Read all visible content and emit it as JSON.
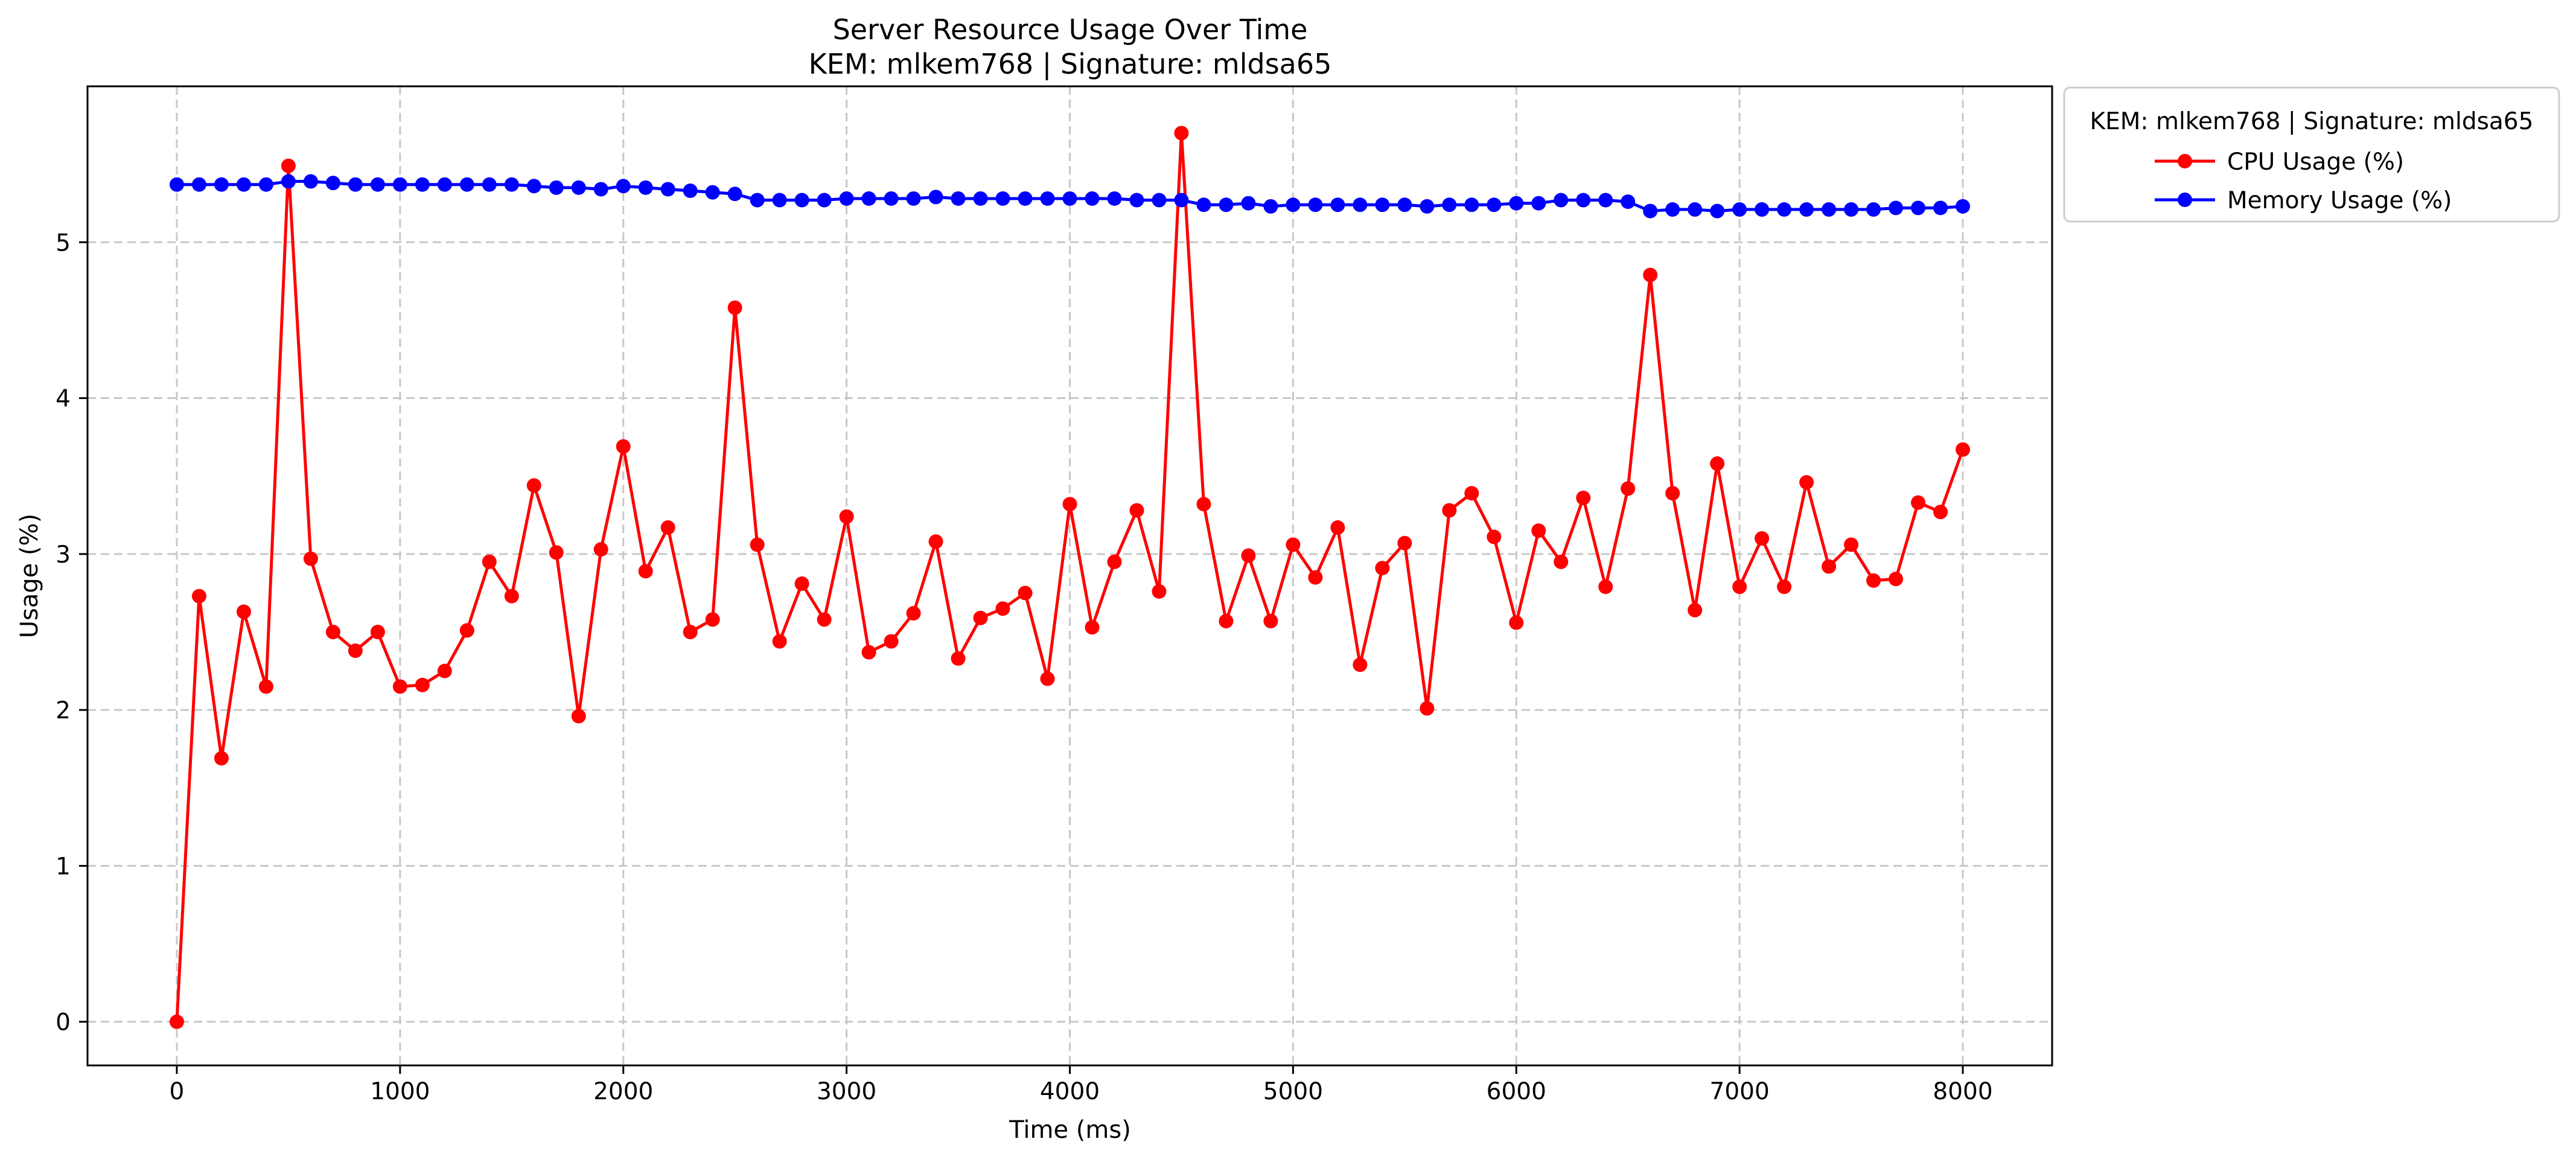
{
  "chart_data": {
    "type": "line",
    "title": "Server Resource Usage Over Time",
    "subtitle": "KEM: mlkem768 | Signature: mldsa65",
    "xlabel": "Time (ms)",
    "ylabel": "Usage (%)",
    "xlim": [
      -400,
      8400
    ],
    "ylim": [
      -0.28,
      6.0
    ],
    "xticks": [
      0,
      1000,
      2000,
      3000,
      4000,
      5000,
      6000,
      7000,
      8000
    ],
    "yticks": [
      0,
      1,
      2,
      3,
      4,
      5
    ],
    "grid": true,
    "legend": {
      "title": "KEM: mlkem768 | Signature: mldsa65",
      "placement": "outside-top-right"
    },
    "x": [
      0,
      100,
      200,
      300,
      400,
      500,
      600,
      700,
      800,
      900,
      1000,
      1100,
      1200,
      1300,
      1400,
      1500,
      1600,
      1700,
      1800,
      1900,
      2000,
      2100,
      2200,
      2300,
      2400,
      2500,
      2600,
      2700,
      2800,
      2900,
      3000,
      3100,
      3200,
      3300,
      3400,
      3500,
      3600,
      3700,
      3800,
      3900,
      4000,
      4100,
      4200,
      4300,
      4400,
      4500,
      4600,
      4700,
      4800,
      4900,
      5000,
      5100,
      5200,
      5300,
      5400,
      5500,
      5600,
      5700,
      5800,
      5900,
      6000,
      6100,
      6200,
      6300,
      6400,
      6500,
      6600,
      6700,
      6800,
      6900,
      7000,
      7100,
      7200,
      7300,
      7400,
      7500,
      7600,
      7700,
      7800,
      7900,
      8000
    ],
    "series": [
      {
        "name": "CPU Usage (%)",
        "color": "#ff0000",
        "values": [
          0.0,
          2.73,
          1.69,
          2.63,
          2.15,
          5.49,
          2.97,
          2.5,
          2.38,
          2.5,
          2.15,
          2.16,
          2.25,
          2.51,
          2.95,
          2.73,
          3.44,
          3.01,
          1.96,
          3.03,
          3.69,
          2.89,
          3.17,
          2.5,
          2.58,
          4.58,
          3.06,
          2.44,
          2.81,
          2.58,
          3.24,
          2.37,
          2.44,
          2.62,
          3.08,
          2.33,
          2.59,
          2.65,
          2.75,
          2.2,
          3.32,
          2.53,
          2.95,
          3.28,
          2.76,
          5.7,
          3.32,
          2.57,
          2.99,
          2.57,
          3.06,
          2.85,
          3.17,
          2.29,
          2.91,
          3.07,
          2.01,
          3.28,
          3.39,
          3.11,
          2.56,
          3.15,
          2.95,
          3.36,
          2.79,
          3.42,
          4.79,
          3.39,
          2.64,
          3.58,
          2.79,
          3.1,
          2.79,
          3.46,
          2.92,
          3.06,
          2.83,
          2.84,
          3.33,
          3.27,
          3.67
        ]
      },
      {
        "name": "Memory Usage (%)",
        "color": "#0000ff",
        "values": [
          5.37,
          5.37,
          5.37,
          5.37,
          5.37,
          5.39,
          5.39,
          5.38,
          5.37,
          5.37,
          5.37,
          5.37,
          5.37,
          5.37,
          5.37,
          5.37,
          5.36,
          5.35,
          5.35,
          5.34,
          5.36,
          5.35,
          5.34,
          5.33,
          5.32,
          5.31,
          5.27,
          5.27,
          5.27,
          5.27,
          5.28,
          5.28,
          5.28,
          5.28,
          5.29,
          5.28,
          5.28,
          5.28,
          5.28,
          5.28,
          5.28,
          5.28,
          5.28,
          5.27,
          5.27,
          5.27,
          5.24,
          5.24,
          5.25,
          5.23,
          5.24,
          5.24,
          5.24,
          5.24,
          5.24,
          5.24,
          5.23,
          5.24,
          5.24,
          5.24,
          5.25,
          5.25,
          5.27,
          5.27,
          5.27,
          5.26,
          5.2,
          5.21,
          5.21,
          5.2,
          5.21,
          5.21,
          5.21,
          5.21,
          5.21,
          5.21,
          5.21,
          5.22,
          5.22,
          5.22,
          5.23
        ]
      }
    ]
  }
}
